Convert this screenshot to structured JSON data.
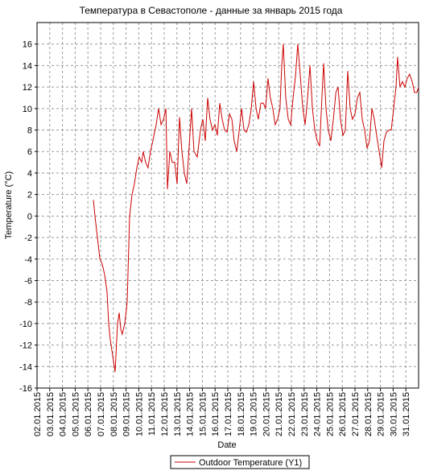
{
  "chart_data": {
    "type": "line",
    "title": "Температура в Севастополе - данные за январь 2015 года",
    "xlabel": "Date",
    "ylabel": "Temperature (°C)",
    "xlim": [
      2,
      32
    ],
    "ylim": [
      -16,
      18
    ],
    "xticks": [
      {
        "value": 2,
        "label": "02.01.2015"
      },
      {
        "value": 3,
        "label": "03.01.2015"
      },
      {
        "value": 4,
        "label": "04.01.2015"
      },
      {
        "value": 5,
        "label": "05.01.2015"
      },
      {
        "value": 6,
        "label": "06.01.2015"
      },
      {
        "value": 7,
        "label": "07.01.2015"
      },
      {
        "value": 8,
        "label": "08.01.2015"
      },
      {
        "value": 9,
        "label": "09.01.2015"
      },
      {
        "value": 10,
        "label": "10.01.2015"
      },
      {
        "value": 11,
        "label": "11.01.2015"
      },
      {
        "value": 12,
        "label": "12.01.2015"
      },
      {
        "value": 13,
        "label": "13.01.2015"
      },
      {
        "value": 14,
        "label": "14.01.2015"
      },
      {
        "value": 15,
        "label": "15.01.2015"
      },
      {
        "value": 16,
        "label": "16.01.2015"
      },
      {
        "value": 17,
        "label": "17.01.2015"
      },
      {
        "value": 18,
        "label": "18.01.2015"
      },
      {
        "value": 19,
        "label": "19.01.2015"
      },
      {
        "value": 20,
        "label": "20.01.2015"
      },
      {
        "value": 21,
        "label": "21.01.2015"
      },
      {
        "value": 22,
        "label": "22.01.2015"
      },
      {
        "value": 23,
        "label": "23.01.2015"
      },
      {
        "value": 24,
        "label": "24.01.2015"
      },
      {
        "value": 25,
        "label": "25.01.2015"
      },
      {
        "value": 26,
        "label": "26.01.2015"
      },
      {
        "value": 27,
        "label": "27.01.2015"
      },
      {
        "value": 28,
        "label": "28.01.2015"
      },
      {
        "value": 29,
        "label": "29.01.2015"
      },
      {
        "value": 30,
        "label": "30.01.2015"
      },
      {
        "value": 31,
        "label": "31.01.2015"
      }
    ],
    "yticks": [
      -16,
      -14,
      -12,
      -10,
      -8,
      -6,
      -4,
      -2,
      0,
      2,
      4,
      6,
      8,
      10,
      12,
      14,
      16
    ],
    "grid": true,
    "x": [
      6.43,
      6.56,
      6.75,
      6.94,
      7.13,
      7.32,
      7.5,
      7.63,
      7.76,
      7.95,
      8.14,
      8.33,
      8.46,
      8.58,
      8.7,
      8.9,
      9.09,
      9.28,
      9.47,
      9.66,
      9.85,
      10.04,
      10.23,
      10.35,
      10.54,
      10.73,
      10.92,
      11.11,
      11.37,
      11.56,
      11.75,
      11.94,
      12.13,
      12.25,
      12.44,
      12.63,
      12.82,
      13.01,
      13.2,
      13.39,
      13.58,
      13.77,
      13.96,
      14.15,
      14.34,
      14.6,
      14.85,
      15.04,
      15.23,
      15.42,
      15.6,
      15.8,
      15.99,
      16.18,
      16.37,
      16.56,
      16.75,
      16.94,
      17.13,
      17.32,
      17.5,
      17.7,
      17.9,
      18.08,
      18.27,
      18.46,
      18.65,
      18.84,
      19.03,
      19.22,
      19.4,
      19.6,
      19.8,
      19.97,
      20.16,
      20.35,
      20.54,
      20.73,
      20.92,
      21.1,
      21.24,
      21.36,
      21.56,
      21.75,
      21.94,
      22.13,
      22.32,
      22.5,
      22.7,
      22.9,
      23.08,
      23.27,
      23.46,
      23.65,
      23.84,
      24.03,
      24.22,
      24.4,
      24.53,
      24.72,
      24.9,
      25.1,
      25.3,
      25.5,
      25.67,
      25.86,
      26.05,
      26.24,
      26.43,
      26.62,
      26.8,
      27.0,
      27.19,
      27.38,
      27.57,
      27.76,
      27.95,
      28.14,
      28.33,
      28.52,
      28.7,
      28.9,
      29.1,
      29.28,
      29.47,
      29.66,
      29.85,
      30.04,
      30.23,
      30.35,
      30.54,
      30.73,
      30.92,
      31.11,
      31.3,
      31.5,
      31.68,
      31.87,
      32.0
    ],
    "series": [
      {
        "name": "Outdoor Temperature (Y1)",
        "color": "#cc0000",
        "values": [
          1.5,
          0,
          -2,
          -4,
          -4.5,
          -5.5,
          -7,
          -10,
          -11.5,
          -13,
          -14.5,
          -10,
          -9,
          -10.5,
          -11,
          -10,
          -8,
          0,
          2,
          3,
          4.5,
          5.5,
          5,
          6,
          5,
          4.5,
          6,
          7,
          8.5,
          10,
          8.5,
          9,
          10,
          2.5,
          6,
          5,
          5,
          3,
          9.2,
          6,
          4,
          3,
          6.5,
          10,
          6,
          5.5,
          8,
          9,
          7,
          11,
          9,
          8,
          8.5,
          7.5,
          10.5,
          9,
          8,
          7.8,
          9.5,
          9,
          7,
          6,
          8,
          10,
          8,
          7.8,
          8.5,
          10,
          12.5,
          10,
          9,
          10.5,
          10.5,
          10,
          12.8,
          11,
          10,
          8.5,
          9,
          10,
          14,
          16,
          11,
          9,
          8.5,
          11,
          13,
          16,
          13,
          10,
          8.5,
          11,
          14,
          10,
          8,
          7,
          6.5,
          11,
          14.2,
          10,
          8,
          7,
          9,
          11.5,
          12,
          9,
          7.5,
          8,
          13.5,
          10,
          9,
          9.5,
          11,
          11.5,
          9,
          8,
          6.3,
          7,
          10,
          9,
          7.5,
          6,
          4.5,
          7,
          7.8,
          8,
          8,
          10,
          12,
          14.8,
          12,
          12.5,
          12,
          12.8,
          13.2,
          12.5,
          11.5,
          11.5,
          12
        ]
      }
    ]
  }
}
